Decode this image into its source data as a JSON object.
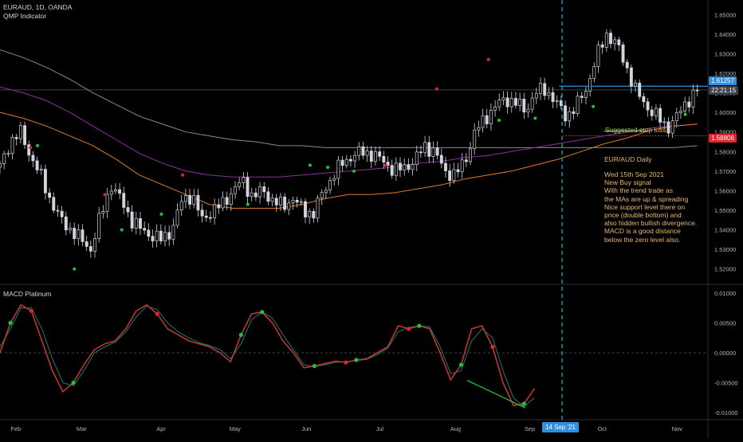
{
  "header": {
    "symbol": "EURAUD, 1D, OANDA",
    "indicator": "QMP Indicator"
  },
  "macd_panel": {
    "title": "MACD Platinum"
  },
  "annotations": {
    "stop_loss": "Suggested stop loss",
    "title": "EUR/AUD Daily",
    "body": "Wed 15th Sep 2021\nNew Buy signal\nWith the trend trade as\nthe MAs are up & spreading\nNice support level there on\nprice (double bottom) and\nalso hidden bullish divergence.\nMACD is a good distance\nbelow the zero level also."
  },
  "price_tags": {
    "last": "1.61257",
    "countdown": "22:21:15",
    "stop": "1.58806"
  },
  "crosshair_date": "14 Sep '21",
  "colors": {
    "up": "#d1d4dc",
    "down": "#d1d4dc",
    "ma_fast": "#e07a2a",
    "ma_mid": "#8b2fa0",
    "ma_slow": "#8a8a8a",
    "buy": "#1dc43a",
    "sell": "#e0262b",
    "macd": "#c0372b",
    "signal": "#1f7a78",
    "stop": "#e0262b",
    "last": "#2f8fe0",
    "crosshair": "#29b6c8"
  },
  "chart_data": [
    {
      "type": "candlestick",
      "title": "EURAUD, 1D, OANDA",
      "ylim": [
        1.515,
        1.655
      ],
      "y_ticks": [
        "1.65000",
        "1.64000",
        "1.63000",
        "1.62000",
        "1.61000",
        "1.60000",
        "1.59000",
        "1.58000",
        "1.57000",
        "1.56000",
        "1.55000",
        "1.54000",
        "1.53000",
        "1.52000"
      ],
      "x_ticks": [
        "Feb",
        "Mar",
        "Apr",
        "May",
        "Jun",
        "Jul",
        "Aug",
        "Sep",
        "Oct",
        "Nov"
      ],
      "close_path": [
        1.572,
        1.585,
        1.59,
        1.578,
        1.568,
        1.555,
        1.545,
        1.54,
        1.535,
        1.53,
        1.548,
        1.563,
        1.555,
        1.545,
        1.54,
        1.537,
        1.535,
        1.54,
        1.555,
        1.558,
        1.545,
        1.55,
        1.553,
        1.56,
        1.565,
        1.557,
        1.56,
        1.555,
        1.552,
        1.556,
        1.55,
        1.548,
        1.56,
        1.568,
        1.575,
        1.578,
        1.58,
        1.578,
        1.575,
        1.57,
        1.572,
        1.575,
        1.583,
        1.58,
        1.57,
        1.568,
        1.575,
        1.59,
        1.597,
        1.603,
        1.607,
        1.605,
        1.601,
        1.61,
        1.612,
        1.605,
        1.598,
        1.603,
        1.612,
        1.628,
        1.64,
        1.635,
        1.623,
        1.61,
        1.603,
        1.598,
        1.592,
        1.598,
        1.606,
        1.611
      ],
      "ma_fast": [
        1.6,
        1.597,
        1.593,
        1.588,
        1.583,
        1.576,
        1.568,
        1.563,
        1.558,
        1.553,
        1.551,
        1.551,
        1.551,
        1.553,
        1.556,
        1.558,
        1.558,
        1.559,
        1.561,
        1.563,
        1.566,
        1.568,
        1.57,
        1.573,
        1.576,
        1.58,
        1.584,
        1.587,
        1.591,
        1.593,
        1.594
      ],
      "ma_mid": [
        1.613,
        1.61,
        1.606,
        1.6,
        1.593,
        1.586,
        1.579,
        1.574,
        1.57,
        1.568,
        1.567,
        1.567,
        1.567,
        1.568,
        1.569,
        1.57,
        1.571,
        1.572,
        1.574,
        1.575,
        1.577,
        1.578,
        1.58,
        1.582,
        1.584,
        1.586,
        1.588,
        1.59,
        1.592,
        1.593,
        1.594
      ],
      "ma_slow": [
        1.632,
        1.628,
        1.623,
        1.617,
        1.61,
        1.604,
        1.598,
        1.594,
        1.59,
        1.588,
        1.586,
        1.585,
        1.583,
        1.583,
        1.582,
        1.582,
        1.582,
        1.582,
        1.582,
        1.582,
        1.582,
        1.582,
        1.582,
        1.582,
        1.582,
        1.582,
        1.582,
        1.582,
        1.582,
        1.582,
        1.583
      ],
      "stop_level": 1.58806,
      "last_price": 1.61257,
      "support_line": [
        [
          0.853,
          1.5905
        ],
        [
          0.915,
          1.5905
        ]
      ],
      "buy_signals": [
        [
          0.105,
          1.52
        ],
        [
          0.172,
          1.54
        ],
        [
          0.228,
          1.548
        ],
        [
          0.438,
          1.573
        ],
        [
          0.463,
          1.572
        ],
        [
          0.5,
          1.57
        ],
        [
          0.705,
          1.596
        ],
        [
          0.756,
          1.597
        ],
        [
          0.838,
          1.603
        ],
        [
          0.968,
          1.599
        ],
        [
          0.053,
          1.583
        ],
        [
          0.35,
          1.553
        ]
      ],
      "sell_signals": [
        [
          0.043,
          1.582
        ],
        [
          0.258,
          1.568
        ],
        [
          0.545,
          1.573
        ],
        [
          0.617,
          1.612
        ],
        [
          0.69,
          1.627
        ],
        [
          0.148,
          1.558
        ]
      ]
    },
    {
      "type": "line",
      "title": "MACD Platinum",
      "ylim": [
        -0.0105,
        0.0105
      ],
      "y_ticks": [
        "0.01000",
        "0.00500",
        "0.00000",
        "-0.00500",
        "-0.01000"
      ],
      "macd": [
        0.0,
        0.005,
        0.008,
        0.007,
        0.002,
        -0.003,
        -0.0065,
        -0.005,
        -0.002,
        0.0005,
        0.0015,
        0.002,
        0.004,
        0.007,
        0.008,
        0.0065,
        0.004,
        0.003,
        0.002,
        0.0015,
        0.001,
        0.0,
        -0.0015,
        0.003,
        0.0065,
        0.0068,
        0.005,
        0.002,
        0.0,
        -0.0025,
        -0.0022,
        -0.0018,
        -0.0014,
        -0.0016,
        -0.0012,
        -0.001,
        0.0,
        0.001,
        0.0045,
        0.004,
        0.0045,
        0.004,
        0.0,
        -0.0045,
        -0.002,
        0.004,
        0.0045,
        0.001,
        -0.005,
        -0.0088,
        -0.0085,
        -0.006
      ],
      "signal": [
        0.001,
        0.004,
        0.0075,
        0.0075,
        0.004,
        -0.001,
        -0.005,
        -0.0055,
        -0.003,
        0.0,
        0.001,
        0.0018,
        0.0035,
        0.006,
        0.0078,
        0.0072,
        0.005,
        0.0035,
        0.0025,
        0.0017,
        0.0012,
        0.0005,
        -0.001,
        0.0015,
        0.0055,
        0.0068,
        0.0058,
        0.003,
        0.0005,
        -0.002,
        -0.0023,
        -0.002,
        -0.0016,
        -0.0015,
        -0.0013,
        -0.0011,
        -0.0003,
        0.0008,
        0.0035,
        0.0042,
        0.0045,
        0.0043,
        0.001,
        -0.0035,
        -0.003,
        0.002,
        0.004,
        0.0025,
        -0.003,
        -0.0075,
        -0.009,
        -0.0075
      ],
      "divergence_line": [
        [
          0.66,
          -0.0046
        ],
        [
          0.742,
          -0.0092
        ]
      ]
    }
  ]
}
